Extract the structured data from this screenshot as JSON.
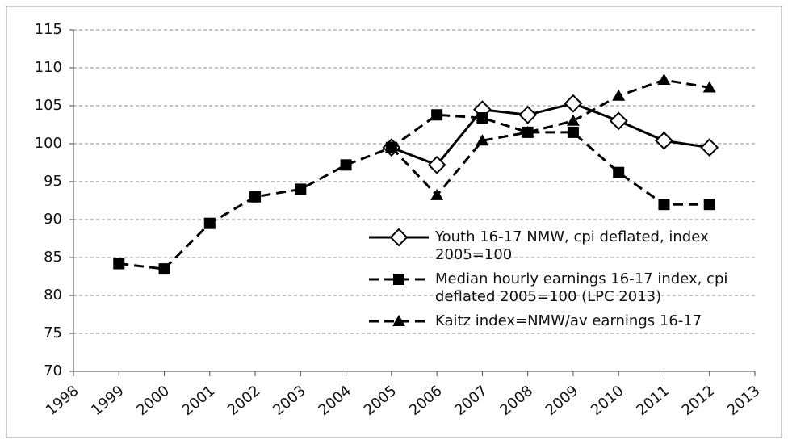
{
  "chart_data": {
    "type": "line",
    "x": [
      1999,
      2000,
      2001,
      2002,
      2003,
      2004,
      2005,
      2006,
      2007,
      2008,
      2009,
      2010,
      2011,
      2012
    ],
    "xlim": [
      1998,
      2013
    ],
    "xticks": [
      1998,
      1999,
      2000,
      2001,
      2002,
      2003,
      2004,
      2005,
      2006,
      2007,
      2008,
      2009,
      2010,
      2011,
      2012,
      2013
    ],
    "ylim": [
      70,
      115
    ],
    "yticks": [
      70,
      75,
      80,
      85,
      90,
      95,
      100,
      105,
      110,
      115
    ],
    "grid": true,
    "series": [
      {
        "name": "Youth 16-17 NMW, cpi deflated, index 2005=100",
        "color": "#000000",
        "line_style": "solid",
        "marker": "diamond",
        "values": [
          null,
          null,
          null,
          null,
          null,
          null,
          99.5,
          97.2,
          104.5,
          103.8,
          105.3,
          103,
          100.4,
          99.5
        ]
      },
      {
        "name": "Median hourly earnings 16-17 index, cpi deflated 2005=100 (LPC 2013)",
        "color": "#000000",
        "line_style": "dashed",
        "marker": "square",
        "values": [
          84.2,
          83.5,
          89.5,
          93,
          94,
          97.2,
          99.5,
          103.8,
          103.4,
          101.5,
          101.5,
          96.2,
          92,
          92
        ]
      },
      {
        "name": "Kaitz index=NMW/av earnings 16-17",
        "color": "#000000",
        "line_style": "dashed",
        "marker": "triangle",
        "values": [
          null,
          null,
          null,
          null,
          null,
          null,
          99.5,
          93.2,
          100.4,
          101.5,
          103,
          106.3,
          108.4,
          107.4
        ]
      }
    ]
  }
}
